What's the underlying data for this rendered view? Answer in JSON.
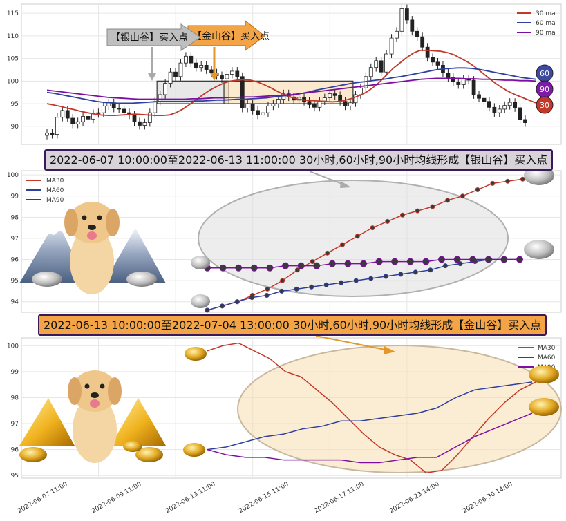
{
  "banners": {
    "silver": "2022-06-07 10:00:00至2022-06-13 11:00:00 30小时,60小时,90小时均线形成【银山谷】买入点",
    "gold": "2022-06-13 10:00:00至2022-07-04 13:00:00 30小时,60小时,90小时均线形成【金山谷】买入点"
  },
  "callouts": {
    "silver": "【银山谷】买入点",
    "gold": "【金山谷】买入点"
  },
  "badges": {
    "ma60": "60",
    "ma90": "90",
    "ma30": "30"
  },
  "colors": {
    "ma30": "#c0392b",
    "ma60": "#2e3f9e",
    "ma90": "#7d0fa0",
    "silver_fill": "#d8d8d8",
    "gold_fill": "#f8dcb0"
  },
  "chart_data": [
    {
      "type": "candlestick",
      "legend": [
        "30 ma",
        "60 ma",
        "90 ma"
      ],
      "legend_position": "top-right",
      "ylim": [
        86,
        117
      ],
      "yticks": [
        90,
        95,
        100,
        105,
        110,
        115
      ],
      "grid": true,
      "candles_close": [
        88.5,
        88.2,
        92,
        93.5,
        91.8,
        90.5,
        91,
        92.2,
        91.6,
        92.8,
        93,
        94.5,
        95.2,
        94,
        93.8,
        93,
        92.5,
        91,
        90.2,
        90.8,
        93,
        95.5,
        97,
        99.5,
        102,
        101,
        104,
        105.5,
        104,
        103,
        103.5,
        102.5,
        101.8,
        101.2,
        100.5,
        101.5,
        102.2,
        101,
        94,
        95,
        93.5,
        92.5,
        93,
        94.5,
        95,
        96,
        97.2,
        96.5,
        95.8,
        96.4,
        95.5,
        94.8,
        94.2,
        95.6,
        96.3,
        97.2,
        96.8,
        95.5,
        94.5,
        95.2,
        97,
        98.5,
        101,
        103,
        104.5,
        102,
        106,
        109.5,
        111,
        116,
        113.5,
        111,
        109.8,
        107.5,
        105.2,
        104.2,
        103.5,
        101.8,
        100.8,
        99.8,
        99.2,
        100.5,
        100.2,
        97,
        96.2,
        95.5,
        94.2,
        93,
        93.8,
        94.6,
        95.3,
        94.1,
        91.5,
        90.8
      ],
      "series": [
        {
          "name": "30 ma",
          "values": [
            95,
            94.7,
            94.4,
            94,
            93.7,
            93.3,
            93,
            92.7,
            92.5,
            92.4,
            92.4,
            92.5,
            92.6,
            92.7,
            92.6,
            92.5,
            92.4,
            92.4,
            92.5,
            93,
            93.8,
            94.8,
            95.9,
            97,
            98,
            98.8,
            99.5,
            100,
            100.2,
            100.3,
            100.2,
            99.8,
            99.2,
            98.5,
            97.7,
            97,
            96.4,
            96,
            95.8,
            95.7,
            95.6,
            95.5,
            95.4,
            95.5,
            95.8,
            96.2,
            96.8,
            97.5,
            98.5,
            99.8,
            101.3,
            102.8,
            104,
            105.2,
            106.2,
            106.8,
            106.8,
            106.7,
            106.6,
            106.3,
            105.8,
            105,
            104.2,
            103.2,
            102,
            100.8,
            99.6,
            98.6,
            97.7,
            97,
            96.4,
            95.8,
            95.2
          ]
        },
        {
          "name": "60 ma",
          "values": [
            97.5,
            97.3,
            97,
            96.7,
            96.4,
            96.1,
            95.8,
            95.5,
            95.3,
            95.2,
            95.1,
            95.1,
            95.1,
            95.2,
            95.3,
            95.4,
            95.5,
            95.5,
            95.5,
            95.5,
            95.5,
            95.6,
            95.6,
            95.7,
            95.8,
            95.8,
            95.9,
            96,
            96,
            96.1,
            96.2,
            96.3,
            96.5,
            96.7,
            96.8,
            97,
            97.3,
            97.6,
            98,
            98.3,
            98.6,
            98.9,
            99.2,
            99.5,
            99.7,
            99.9,
            100.1,
            100.3,
            100.5,
            100.8,
            101,
            101.3,
            101.6,
            101.9,
            102.2,
            102.5,
            102.7,
            102.8,
            102.9,
            102.9,
            102.8,
            102.6,
            102.3,
            102,
            101.7,
            101.4,
            101.1,
            100.8,
            100.6,
            100.4
          ]
        },
        {
          "name": "90 ma",
          "values": [
            98,
            97.8,
            97.6,
            97.4,
            97.2,
            97,
            96.8,
            96.6,
            96.4,
            96.3,
            96.2,
            96.1,
            96,
            96,
            96,
            96,
            96,
            96,
            96,
            96.1,
            96.1,
            96.2,
            96.3,
            96.3,
            96.4,
            96.4,
            96.5,
            96.5,
            96.6,
            96.7,
            96.8,
            96.9,
            97,
            97.2,
            97.4,
            97.6,
            97.8,
            98,
            98.2,
            98.4,
            98.6,
            98.8,
            99,
            99.2,
            99.4,
            99.6,
            99.8,
            100,
            100.2,
            100.4,
            100.5,
            100.6,
            100.6,
            100.6,
            100.6,
            100.5,
            100.5,
            100.4,
            100.4,
            100.3,
            100.2,
            100.2,
            100.1,
            100.1,
            100
          ]
        }
      ],
      "zones": [
        {
          "name": "silver",
          "x0_frac": 0.23,
          "x1_frac": 0.38,
          "y0": 95,
          "y1": 100
        },
        {
          "name": "gold",
          "x0_frac": 0.37,
          "x1_frac": 0.64,
          "y0": 95,
          "y1": 100
        }
      ]
    },
    {
      "type": "line",
      "legend": [
        "MA30",
        "MA60",
        "MA90"
      ],
      "legend_position": "top-left",
      "ylim": [
        93.5,
        100.2
      ],
      "yticks": [
        94,
        95,
        96,
        97,
        98,
        99,
        100
      ],
      "grid": true,
      "series": [
        {
          "name": "MA30",
          "values": [
            93.6,
            93.8,
            94.0,
            94.3,
            94.6,
            95.0,
            95.5,
            95.9,
            96.3,
            96.7,
            97.1,
            97.5,
            97.8,
            98.1,
            98.3,
            98.5,
            98.8,
            99.0,
            99.3,
            99.6,
            99.7,
            99.8,
            99.9
          ]
        },
        {
          "name": "MA60",
          "values": [
            93.6,
            93.8,
            94.0,
            94.2,
            94.3,
            94.5,
            94.6,
            94.7,
            94.8,
            94.9,
            95.0,
            95.1,
            95.2,
            95.3,
            95.4,
            95.5,
            95.7,
            95.8,
            95.9,
            96.0,
            96.0,
            96.0
          ]
        },
        {
          "name": "MA90",
          "values": [
            95.6,
            95.6,
            95.6,
            95.6,
            95.6,
            95.7,
            95.7,
            95.7,
            95.8,
            95.8,
            95.8,
            95.9,
            95.9,
            95.9,
            95.9,
            96.0,
            96.0,
            96.0,
            96.0,
            96.0,
            96.0
          ]
        }
      ]
    },
    {
      "type": "line",
      "legend": [
        "MA30",
        "MA60",
        "MA90"
      ],
      "legend_position": "top-right",
      "ylim": [
        94.9,
        100.3
      ],
      "yticks": [
        95,
        96,
        97,
        98,
        99,
        100
      ],
      "xticklabels": [
        "2022-06-07 11:00",
        "2022-06-09 11:00",
        "2022-06-13 11:00",
        "2022-06-15 11:00",
        "2022-06-17 11:00",
        "2022-06-23 14:00",
        "2022-06-30 14:00"
      ],
      "grid": true,
      "series": [
        {
          "name": "MA30",
          "values": [
            99.8,
            100,
            100.1,
            99.8,
            99.5,
            99,
            98.8,
            98.3,
            97.8,
            97.2,
            96.6,
            96.1,
            95.8,
            95.6,
            95.1,
            95.2,
            95.8,
            96.5,
            97.2,
            97.8,
            98.3,
            98.6
          ]
        },
        {
          "name": "MA60",
          "values": [
            96,
            96.1,
            96.3,
            96.5,
            96.6,
            96.8,
            96.9,
            97.1,
            97.1,
            97.2,
            97.3,
            97.4,
            97.6,
            98.0,
            98.3,
            98.4,
            98.5,
            98.6
          ]
        },
        {
          "name": "MA90",
          "values": [
            96,
            95.8,
            95.7,
            95.7,
            95.6,
            95.6,
            95.6,
            95.6,
            95.5,
            95.5,
            95.6,
            95.7,
            95.7,
            96.1,
            96.5,
            96.8,
            97.1,
            97.4
          ]
        }
      ]
    }
  ]
}
